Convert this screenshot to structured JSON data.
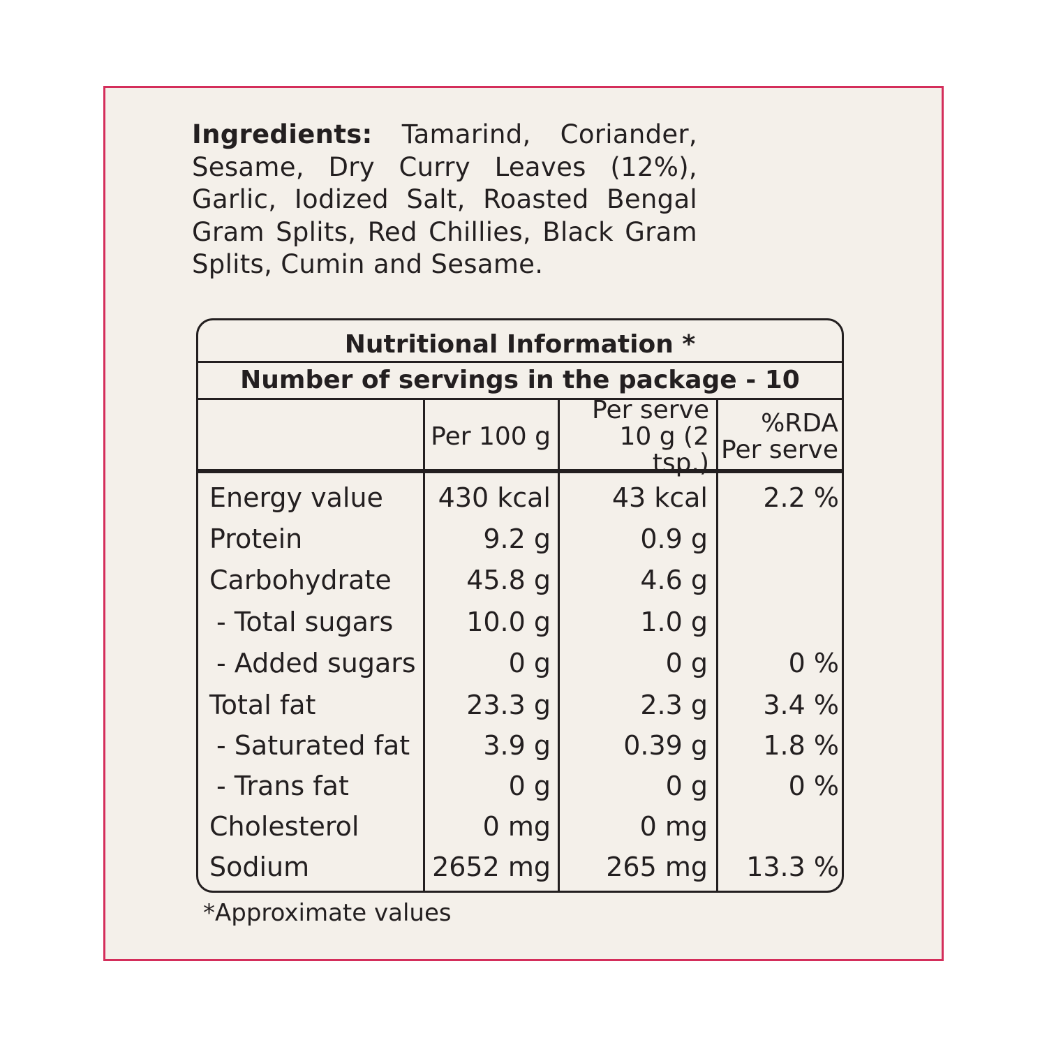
{
  "ingredients": {
    "label": "Ingredients:",
    "text": "Tamarind, Coriander, Sesame, Dry Curry Leaves (12%), Garlic, Iodized Salt, Roasted Bengal Gram Splits, Red Chillies, Black Gram Splits, Cumin and Sesame."
  },
  "nutrition": {
    "title": "Nutritional Information *",
    "servings": "Number of servings in the package - 10",
    "headers": {
      "per100_line1": "Per 100 g",
      "perserve_line1": "Per serve",
      "perserve_line2": "10 g (2 tsp.)",
      "rda_line1": "%RDA",
      "rda_line2": "Per serve"
    },
    "rows": [
      {
        "name": "Energy value",
        "per100": "430 kcal",
        "perserve": "43 kcal",
        "rda": "2.2 %"
      },
      {
        "name": "Protein",
        "per100": "9.2 g",
        "perserve": "0.9 g",
        "rda": ""
      },
      {
        "name": "Carbohydrate",
        "per100": "45.8 g",
        "perserve": "4.6 g",
        "rda": ""
      },
      {
        "name": "- Total sugars",
        "per100": "10.0 g",
        "perserve": "1.0 g",
        "rda": ""
      },
      {
        "name": "- Added sugars",
        "per100": "0 g",
        "perserve": "0 g",
        "rda": "0 %"
      },
      {
        "name": "Total fat",
        "per100": "23.3 g",
        "perserve": "2.3 g",
        "rda": "3.4 %"
      },
      {
        "name": "- Saturated fat",
        "per100": "3.9 g",
        "perserve": "0.39 g",
        "rda": "1.8 %"
      },
      {
        "name": "- Trans fat",
        "per100": "0 g",
        "perserve": "0 g",
        "rda": "0 %"
      },
      {
        "name": "Cholesterol",
        "per100": "0 mg",
        "perserve": "0 mg",
        "rda": ""
      },
      {
        "name": "Sodium",
        "per100": "2652 mg",
        "perserve": "265 mg",
        "rda": "13.3 %"
      }
    ],
    "footnote": "*Approximate values"
  },
  "colors": {
    "border": "#d42e5b",
    "panel_bg": "#f4f0ea",
    "text": "#231f20"
  }
}
